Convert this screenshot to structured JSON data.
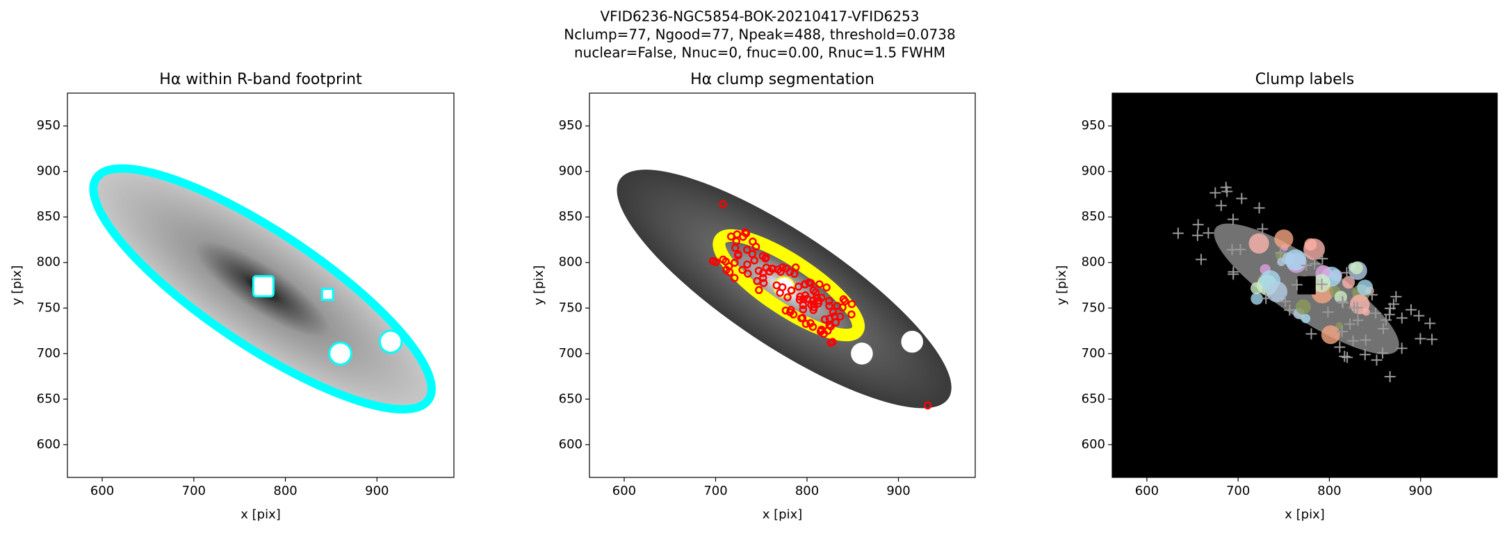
{
  "figure_title": [
    "VFID6236-NGC5854-BOK-20210417-VFID6253",
    "Nclump=77, Ngood=77, Npeak=488, threshold=0.0738",
    "nuclear=False, Nnuc=0, fnuc=0.00, Rnuc=1.5 FWHM"
  ],
  "chart_data": [
    {
      "type": "image",
      "title": "Hα within R-band footprint",
      "xlabel": "x [pix]",
      "ylabel": "y [pix]",
      "xlim": [
        562,
        984
      ],
      "ylim": [
        564,
        986
      ],
      "xticks": [
        600,
        700,
        800,
        900
      ],
      "yticks": [
        600,
        650,
        700,
        750,
        800,
        850,
        900,
        950
      ]
    },
    {
      "type": "image",
      "title": "Hα clump segmentation",
      "xlabel": "x [pix]",
      "ylabel": "y [pix]",
      "xlim": [
        562,
        984
      ],
      "ylim": [
        564,
        986
      ],
      "xticks": [
        600,
        700,
        800,
        900
      ],
      "yticks": [
        600,
        650,
        700,
        750,
        800,
        850,
        900,
        950
      ]
    },
    {
      "type": "image",
      "title": "Clump labels",
      "xlabel": "x [pix]",
      "ylabel": "y [pix]",
      "xlim": [
        562,
        984
      ],
      "ylim": [
        564,
        986
      ],
      "xticks": [
        600,
        700,
        800,
        900
      ],
      "yticks": [
        600,
        650,
        700,
        750,
        800,
        850,
        900,
        950
      ]
    }
  ]
}
